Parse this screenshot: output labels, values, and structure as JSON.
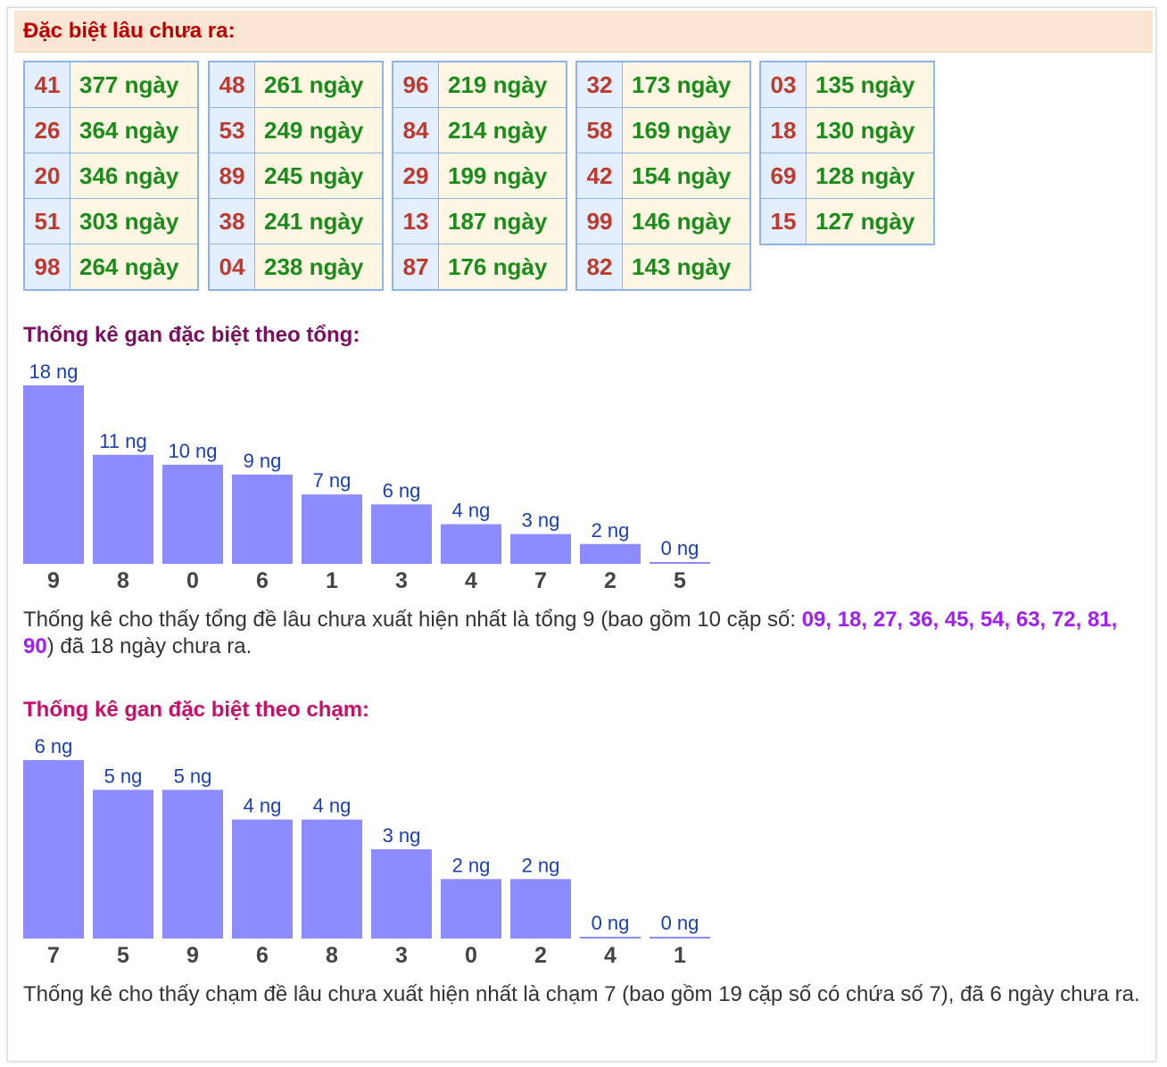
{
  "header": {
    "title": "Đặc biệt lâu chưa ra:"
  },
  "gan_tables": [
    [
      {
        "num": "41",
        "days": "377 ngày"
      },
      {
        "num": "26",
        "days": "364 ngày"
      },
      {
        "num": "20",
        "days": "346 ngày"
      },
      {
        "num": "51",
        "days": "303 ngày"
      },
      {
        "num": "98",
        "days": "264 ngày"
      }
    ],
    [
      {
        "num": "48",
        "days": "261 ngày"
      },
      {
        "num": "53",
        "days": "249 ngày"
      },
      {
        "num": "89",
        "days": "245 ngày"
      },
      {
        "num": "38",
        "days": "241 ngày"
      },
      {
        "num": "04",
        "days": "238 ngày"
      }
    ],
    [
      {
        "num": "96",
        "days": "219 ngày"
      },
      {
        "num": "84",
        "days": "214 ngày"
      },
      {
        "num": "29",
        "days": "199 ngày"
      },
      {
        "num": "13",
        "days": "187 ngày"
      },
      {
        "num": "87",
        "days": "176 ngày"
      }
    ],
    [
      {
        "num": "32",
        "days": "173 ngày"
      },
      {
        "num": "58",
        "days": "169 ngày"
      },
      {
        "num": "42",
        "days": "154 ngày"
      },
      {
        "num": "99",
        "days": "146 ngày"
      },
      {
        "num": "82",
        "days": "143 ngày"
      }
    ],
    [
      {
        "num": "03",
        "days": "135 ngày"
      },
      {
        "num": "18",
        "days": "130 ngày"
      },
      {
        "num": "69",
        "days": "128 ngày"
      },
      {
        "num": "15",
        "days": "127 ngày"
      }
    ]
  ],
  "sections": {
    "tong": {
      "title": "Thống kê gan đặc biệt theo tổng:",
      "desc_prefix": "Thống kê cho thấy tổng đề lâu chưa xuất hiện nhất là tổng 9 (bao gồm 10 cặp số: ",
      "desc_pairs": "09, 18, 27, 36, 45, 54, 63, 72, 81, 90",
      "desc_suffix": ") đã 18 ngày chưa ra."
    },
    "cham": {
      "title": "Thống kê gan đặc biệt theo chạm:",
      "desc": "Thống kê cho thấy chạm đề lâu chưa xuất hiện nhất là chạm 7 (bao gồm 19 cặp số có chứa số 7), đã 6 ngày chưa ra."
    }
  },
  "colors": {
    "bar": "#8c8cff",
    "bar_label": "#1a3fb0",
    "category_label": "#444444",
    "tong_title": "#7a1060",
    "cham_title": "#c8106a"
  },
  "chart_data": [
    {
      "type": "bar",
      "categories": [
        "9",
        "8",
        "0",
        "6",
        "1",
        "3",
        "4",
        "7",
        "2",
        "5"
      ],
      "values": [
        18,
        11,
        10,
        9,
        7,
        6,
        4,
        3,
        2,
        0
      ],
      "labels": [
        "18 ng",
        "11 ng",
        "10 ng",
        "9 ng",
        "7 ng",
        "6 ng",
        "4 ng",
        "3 ng",
        "2 ng",
        "0 ng"
      ],
      "ylim": [
        0,
        18
      ]
    },
    {
      "type": "bar",
      "categories": [
        "7",
        "5",
        "9",
        "6",
        "8",
        "3",
        "0",
        "2",
        "4",
        "1"
      ],
      "values": [
        6,
        5,
        5,
        4,
        4,
        3,
        2,
        2,
        0,
        0
      ],
      "labels": [
        "6 ng",
        "5 ng",
        "5 ng",
        "4 ng",
        "4 ng",
        "3 ng",
        "2 ng",
        "2 ng",
        "0 ng",
        "0 ng"
      ],
      "ylim": [
        0,
        6
      ]
    }
  ]
}
